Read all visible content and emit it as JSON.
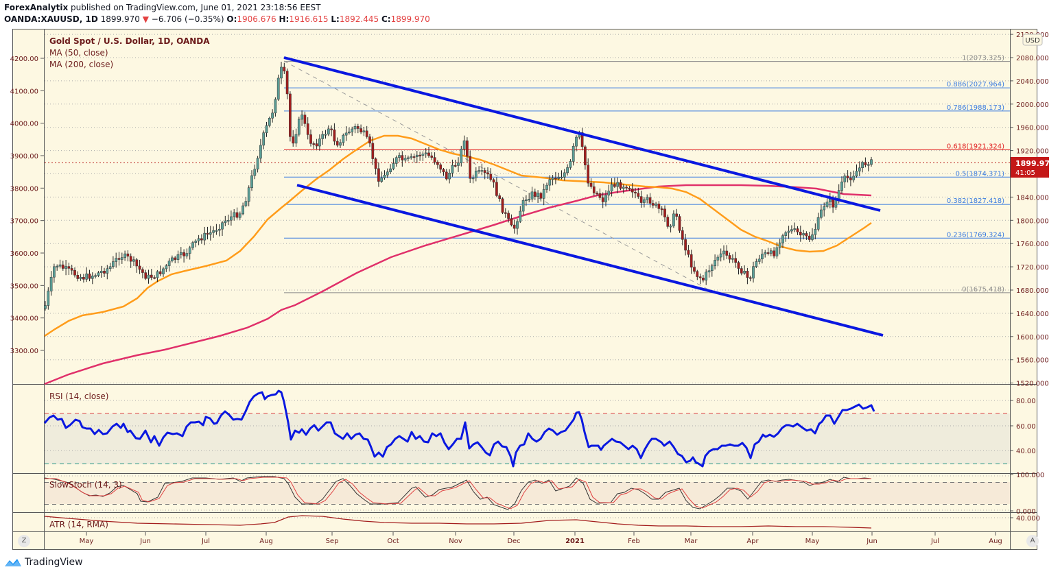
{
  "header": {
    "author": "ForexAnalytix",
    "published": "published on TradingView.com, June 01, 2021 23:18:56 EEST",
    "symbol": "OANDA:XAUUSD, 1D",
    "last": "1899.970",
    "change": "−6.706 (−0.35%)",
    "o_label": "O:",
    "o": "1906.676",
    "h_label": "H:",
    "h": "1916.615",
    "l_label": "L:",
    "l": "1892.445",
    "c_label": "C:",
    "c": "1899.970"
  },
  "legend": {
    "title": "Gold Spot / U.S. Dollar, 1D, OANDA",
    "ma50": "MA (50, close)",
    "ma200": "MA (200, close)",
    "rsi": "RSI (14, close)",
    "stoch": "SlowStoch (14, 3)",
    "atr": "ATR (14, RMA)"
  },
  "price_badge": {
    "value": "1899.970",
    "countdown": "41:05"
  },
  "currency": "USD",
  "footer": {
    "brand": "TradingView",
    "z_button": "Z",
    "a_button": "A"
  },
  "colors": {
    "background": "#fdf8e2",
    "up_candle": "#5a9e96",
    "down_candle": "#a31d1d",
    "channel": "#0a18e0",
    "ma50": "#ff9c1a",
    "ma200": "#e0306a",
    "fib_blue": "#3a7be0",
    "fib_red": "#e02020",
    "fib_gray": "#888888",
    "rsi": "#0a18e0",
    "axis_text": "#6b1a1a"
  },
  "chart_data": {
    "type": "candlestick",
    "title": "Gold Spot / U.S. Dollar, 1D, OANDA",
    "symbol": "OANDA:XAUUSD",
    "timeframe": "1D",
    "right_axis": {
      "ticks": [
        "2120.000",
        "2080.000",
        "2040.000",
        "2000.000",
        "1960.000",
        "1920.000",
        "1880.000",
        "1840.000",
        "1800.000",
        "1760.000",
        "1720.000",
        "1680.000",
        "1640.000",
        "1600.000",
        "1560.000",
        "1520.000"
      ],
      "range": [
        1510,
        2125
      ]
    },
    "left_axis": {
      "ticks": [
        "4200.00",
        "4100.00",
        "4000.00",
        "3900.00",
        "3800.00",
        "3700.00",
        "3600.00",
        "3500.00",
        "3400.00",
        "3300.00"
      ]
    },
    "x_ticks": [
      "May",
      "Jun",
      "Jul",
      "Aug",
      "Sep",
      "Oct",
      "Nov",
      "Dec",
      "2021",
      "Feb",
      "Mar",
      "Apr",
      "May",
      "Jun",
      "Jul",
      "Aug"
    ],
    "fibonacci": [
      {
        "level": "1",
        "price": 2073.325,
        "label": "1(2073.325)",
        "color": "gray"
      },
      {
        "level": "0.886",
        "price": 2027.964,
        "label": "0.886(2027.964)",
        "color": "blue"
      },
      {
        "level": "0.786",
        "price": 1988.173,
        "label": "0.786(1988.173)",
        "color": "blue"
      },
      {
        "level": "0.618",
        "price": 1921.324,
        "label": "0.618(1921.324)",
        "color": "red"
      },
      {
        "level": "0.5",
        "price": 1874.371,
        "label": "0.5(1874.371)",
        "color": "blue"
      },
      {
        "level": "0.382",
        "price": 1827.418,
        "label": "0.382(1827.418)",
        "color": "blue"
      },
      {
        "level": "0.236",
        "price": 1769.324,
        "label": "0.236(1769.324)",
        "color": "blue"
      },
      {
        "level": "0",
        "price": 1675.418,
        "label": "0(1675.418)",
        "color": "gray"
      }
    ],
    "last_close": 1899.97,
    "ohlc_last": {
      "open": 1906.676,
      "high": 1916.615,
      "low": 1892.445,
      "close": 1899.97
    },
    "indicators": {
      "rsi": {
        "name": "RSI (14, close)",
        "ticks": [
          "80.00",
          "60.00",
          "40.00"
        ],
        "upper": 70,
        "lower": 30,
        "last_approx": 73
      },
      "stoch": {
        "name": "SlowStoch (14, 3)",
        "ticks": [
          "100.000",
          "0.000"
        ],
        "upper": 80,
        "lower": 20
      },
      "atr": {
        "name": "ATR (14, RMA)",
        "ticks": [
          "40.000"
        ]
      }
    },
    "channel_lines": [
      {
        "name": "upper",
        "from": {
          "date": "2020-08-07",
          "price": 2078
        },
        "to": {
          "date": "2021-06-01",
          "price": 1832
        }
      },
      {
        "name": "lower",
        "from": {
          "date": "2020-08-11",
          "price": 1866
        },
        "to": {
          "date": "2021-06-01",
          "price": 1604
        }
      }
    ]
  }
}
